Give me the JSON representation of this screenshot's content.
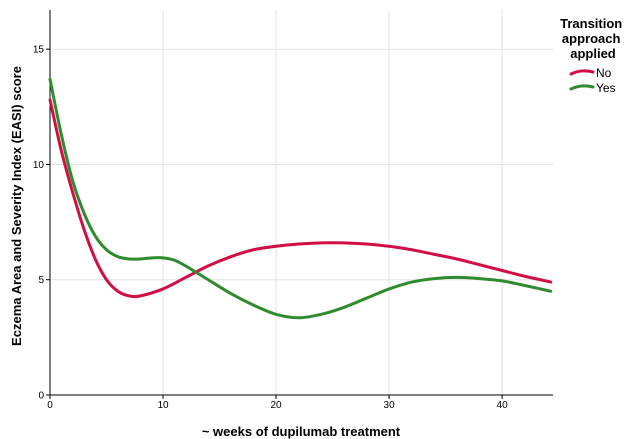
{
  "chart_data": {
    "type": "line",
    "title": "",
    "xlabel": "~ weeks of dupilumab treatment",
    "ylabel": "Eczema Area and Severity Index (EASI) score",
    "xlim": [
      0,
      44.5
    ],
    "ylim": [
      0,
      16.7
    ],
    "x_ticks": [
      0,
      10,
      20,
      30,
      40
    ],
    "y_ticks": [
      0,
      5,
      10,
      15
    ],
    "grid": true,
    "legend_title": "Transition approach applied",
    "legend_placement": "top-right",
    "series": [
      {
        "name": "No",
        "color": "#d10f44",
        "points": [
          [
            0,
            12.8
          ],
          [
            1,
            10.6
          ],
          [
            2,
            8.8
          ],
          [
            3,
            7.2
          ],
          [
            4,
            5.9
          ],
          [
            5,
            5.0
          ],
          [
            6,
            4.5
          ],
          [
            7,
            4.3
          ],
          [
            8,
            4.3
          ],
          [
            10,
            4.6
          ],
          [
            12,
            5.1
          ],
          [
            14,
            5.6
          ],
          [
            16,
            6.0
          ],
          [
            18,
            6.3
          ],
          [
            20,
            6.45
          ],
          [
            22,
            6.55
          ],
          [
            24,
            6.6
          ],
          [
            26,
            6.6
          ],
          [
            28,
            6.55
          ],
          [
            30,
            6.45
          ],
          [
            32,
            6.3
          ],
          [
            34,
            6.1
          ],
          [
            36,
            5.9
          ],
          [
            38,
            5.65
          ],
          [
            40,
            5.4
          ],
          [
            42,
            5.15
          ],
          [
            44.3,
            4.9
          ]
        ]
      },
      {
        "name": "Yes",
        "color": "#2e8b2e",
        "points": [
          [
            0,
            13.7
          ],
          [
            1,
            11.3
          ],
          [
            2,
            9.3
          ],
          [
            3,
            7.9
          ],
          [
            4,
            6.9
          ],
          [
            5,
            6.3
          ],
          [
            6,
            6.0
          ],
          [
            7,
            5.9
          ],
          [
            8,
            5.9
          ],
          [
            9,
            5.95
          ],
          [
            10,
            5.95
          ],
          [
            11,
            5.85
          ],
          [
            12,
            5.6
          ],
          [
            13,
            5.3
          ],
          [
            14,
            5.0
          ],
          [
            16,
            4.4
          ],
          [
            18,
            3.9
          ],
          [
            20,
            3.5
          ],
          [
            22,
            3.35
          ],
          [
            24,
            3.5
          ],
          [
            26,
            3.8
          ],
          [
            28,
            4.2
          ],
          [
            30,
            4.6
          ],
          [
            32,
            4.9
          ],
          [
            34,
            5.05
          ],
          [
            36,
            5.1
          ],
          [
            38,
            5.05
          ],
          [
            40,
            4.95
          ],
          [
            42,
            4.75
          ],
          [
            44.3,
            4.5
          ]
        ]
      }
    ]
  }
}
